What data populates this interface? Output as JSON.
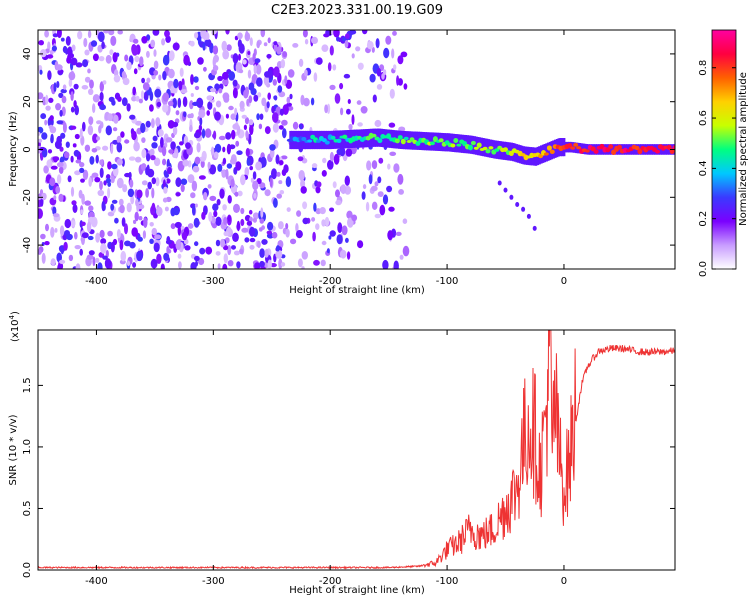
{
  "title": "C2E3.2023.331.00.19.G09",
  "chart_data": [
    {
      "type": "heatmap",
      "xlabel": "Height of straight line (km)",
      "ylabel": "Frequency (Hz)",
      "xlim": [
        -450,
        95
      ],
      "ylim": [
        -50,
        50
      ],
      "x_ticks": [
        -400,
        -300,
        -200,
        -100,
        0
      ],
      "y_ticks": [
        -40,
        -20,
        0,
        20,
        40
      ],
      "colorbar": {
        "label": "Normalized spectral amplitude",
        "range": [
          0.0,
          0.95
        ],
        "ticks": [
          "0.0",
          "0.2",
          "0.4",
          "0.6",
          "0.8"
        ],
        "ticks_values": [
          0.0,
          0.2,
          0.4,
          0.6,
          0.8
        ],
        "colors": [
          "#ffffff",
          "#c89cff",
          "#7a00ff",
          "#3a3aff",
          "#00c8ff",
          "#00ff80",
          "#c8ff00",
          "#ffd000",
          "#ff6000",
          "#ff0040",
          "#ff00a0"
        ]
      },
      "noise_region_x": [
        -450,
        -135
      ],
      "ridge": {
        "x": [
          -235,
          -220,
          -200,
          -180,
          -160,
          -140,
          -120,
          -100,
          -80,
          -60,
          -45,
          -35,
          -25,
          -15,
          -5,
          5,
          20,
          40,
          60,
          80,
          95
        ],
        "freq": [
          4,
          4,
          4,
          4.5,
          5,
          4,
          3.5,
          3,
          2,
          0,
          -1,
          -2.5,
          -3,
          -1,
          1,
          1,
          0,
          0,
          0,
          0,
          0
        ],
        "amplitude": [
          0.35,
          0.4,
          0.45,
          0.45,
          0.5,
          0.5,
          0.55,
          0.55,
          0.55,
          0.55,
          0.6,
          0.65,
          0.7,
          0.75,
          0.8,
          0.85,
          0.9,
          0.9,
          0.9,
          0.9,
          0.9
        ]
      },
      "tail": {
        "x": [
          -55,
          -50,
          -45,
          -40,
          -35,
          -30,
          -25
        ],
        "freq": [
          -14,
          -17,
          -20,
          -23,
          -25,
          -28,
          -33
        ]
      },
      "grid": false
    },
    {
      "type": "line",
      "xlabel": "Height of straight line (km)",
      "ylabel": "SNR (10 * v/v)",
      "scale_label": "(x10",
      "scale_exponent": "4",
      "scale_close": ")",
      "xlim": [
        -450,
        95
      ],
      "ylim": [
        0.0,
        1.95
      ],
      "x_ticks": [
        -400,
        -300,
        -200,
        -100,
        0
      ],
      "y_ticks": [
        "0.0",
        "0.5",
        "1.0",
        "1.5"
      ],
      "y_ticks_values": [
        0.0,
        0.5,
        1.0,
        1.5
      ],
      "line_color": "#ee3333",
      "series": [
        {
          "x": [
            -450,
            -400,
            -300,
            -200,
            -150,
            -125,
            -110,
            -100,
            -90,
            -80,
            -70,
            -60,
            -50,
            -40,
            -35,
            -30,
            -25,
            -20,
            -15,
            -12,
            -10,
            -8,
            -5,
            0,
            5,
            10,
            15,
            20,
            25,
            30,
            40,
            50,
            60,
            70,
            80,
            95
          ],
          "values": [
            0.02,
            0.02,
            0.02,
            0.02,
            0.02,
            0.03,
            0.05,
            0.15,
            0.2,
            0.3,
            0.25,
            0.3,
            0.45,
            0.6,
            0.9,
            1.1,
            1.0,
            0.7,
            1.2,
            1.7,
            0.8,
            1.3,
            0.9,
            0.6,
            0.8,
            1.2,
            1.5,
            1.65,
            1.72,
            1.78,
            1.8,
            1.8,
            1.78,
            1.77,
            1.77,
            1.78
          ]
        }
      ],
      "grid": false
    }
  ]
}
